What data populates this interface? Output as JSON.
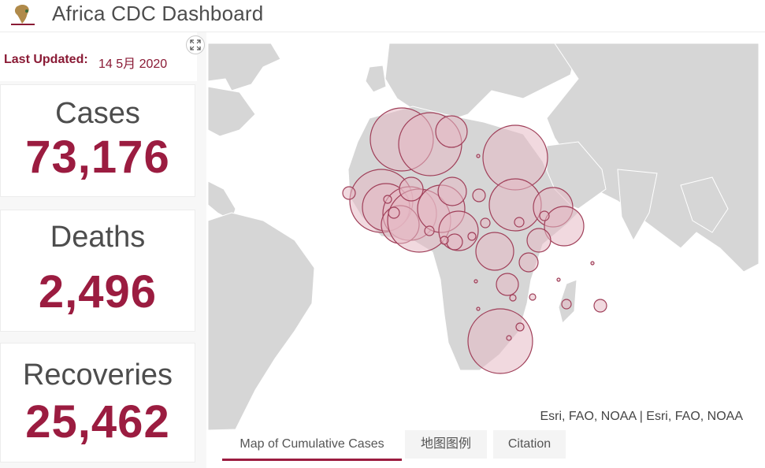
{
  "header": {
    "title": "Africa CDC Dashboard"
  },
  "updated": {
    "label": "Last Updated:",
    "value": "14 5月 2020"
  },
  "stats": [
    {
      "title": "Cases",
      "value": "73,176"
    },
    {
      "title": "Deaths",
      "value": "2,496"
    },
    {
      "title": "Recoveries",
      "value": "25,462"
    }
  ],
  "map": {
    "attribution": "Esri, FAO, NOAA | Esri, FAO, NOAA",
    "marker_fill": "#e6b9c4",
    "marker_stroke": "#a0405a",
    "land_color": "#d6d6d6"
  },
  "tabs": [
    {
      "label": "Map of Cumulative Cases",
      "active": true
    },
    {
      "label": "地图图例",
      "active": false
    },
    {
      "label": "Citation",
      "active": false
    }
  ],
  "colors": {
    "accent": "#9b1c40",
    "text": "#4d4d4d"
  }
}
